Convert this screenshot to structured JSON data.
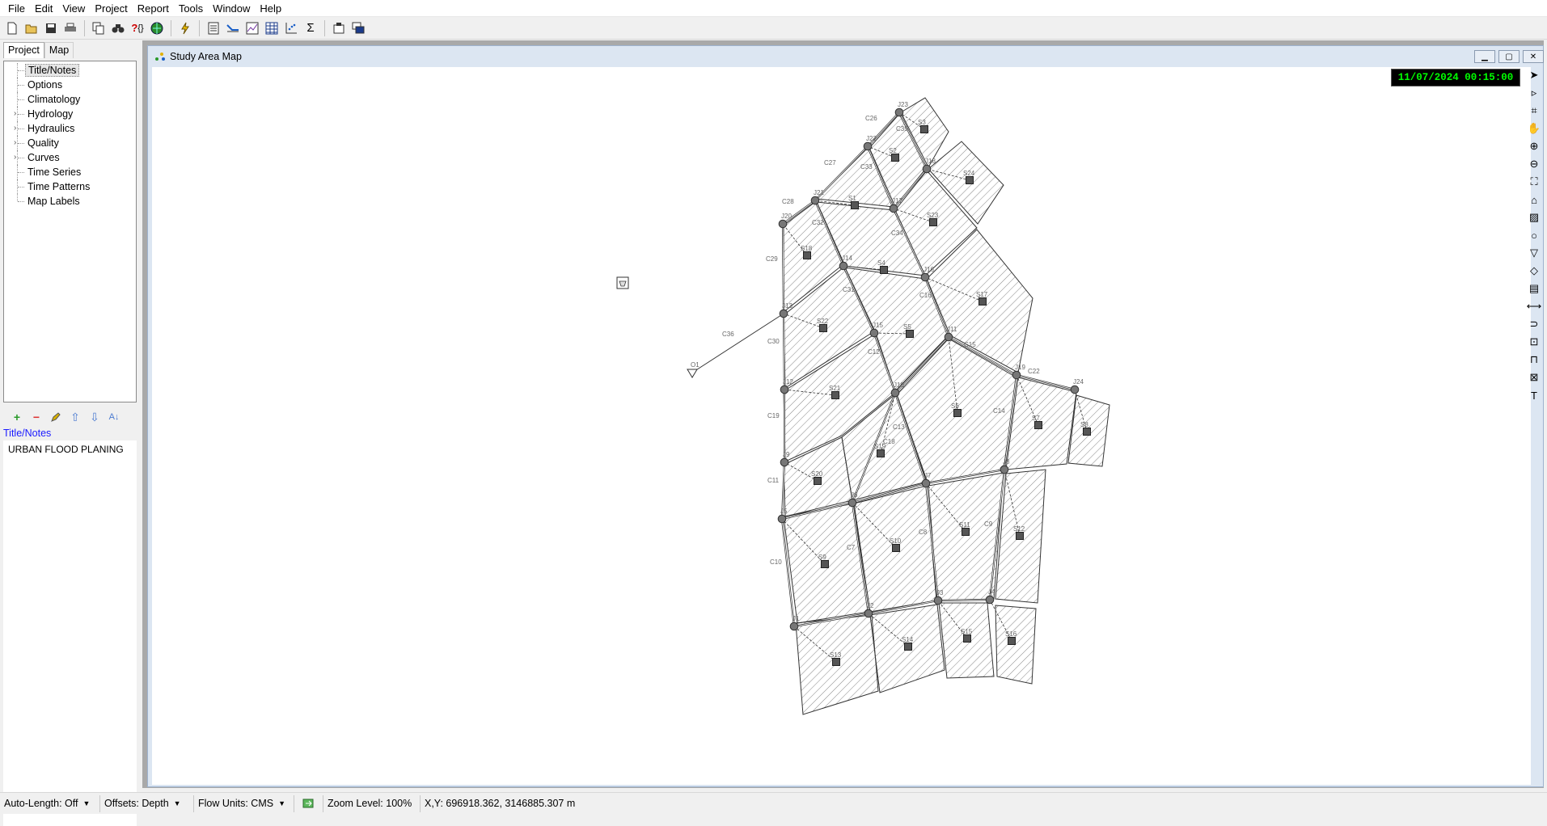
{
  "menu": [
    "File",
    "Edit",
    "View",
    "Project",
    "Report",
    "Tools",
    "Window",
    "Help"
  ],
  "toolbar_icons": [
    "new-file-icon",
    "open-folder-icon",
    "save-icon",
    "print-icon",
    "copy-icon",
    "find-icon",
    "query-icon",
    "globe-icon",
    "run-icon",
    "report-icon",
    "profile-plot-icon",
    "time-series-plot-icon",
    "table-icon",
    "scatter-plot-icon",
    "statistics-icon",
    "options-icon",
    "arrange-windows-icon"
  ],
  "left_panel": {
    "tabs": [
      "Project",
      "Map"
    ],
    "active_tab": "Project",
    "tree": [
      {
        "label": "Title/Notes",
        "expandable": false,
        "selected": true
      },
      {
        "label": "Options",
        "expandable": false
      },
      {
        "label": "Climatology",
        "expandable": false
      },
      {
        "label": "Hydrology",
        "expandable": true
      },
      {
        "label": "Hydraulics",
        "expandable": true
      },
      {
        "label": "Quality",
        "expandable": true
      },
      {
        "label": "Curves",
        "expandable": true
      },
      {
        "label": "Time Series",
        "expandable": false
      },
      {
        "label": "Time Patterns",
        "expandable": false
      },
      {
        "label": "Map Labels",
        "expandable": false
      }
    ],
    "mini_toolbar": [
      "add-icon",
      "delete-icon",
      "edit-icon",
      "move-up-icon",
      "move-down-icon",
      "sort-icon"
    ],
    "property_title": "Title/Notes",
    "property_text": "URBAN FLOOD PLANING"
  },
  "map_window": {
    "title": "Study Area Map",
    "time": "11/07/2024 00:15:00",
    "right_tools": [
      "select-object-icon",
      "select-vertex-icon",
      "select-region-icon",
      "pan-icon",
      "zoom-in-icon",
      "zoom-out-icon",
      "full-extent-icon",
      "rain-gage-icon",
      "subcatchment-icon",
      "junction-icon",
      "outfall-icon",
      "divider-icon",
      "storage-icon",
      "conduit-icon",
      "pump-icon",
      "orifice-icon",
      "weir-icon",
      "outlet-icon",
      "label-icon"
    ],
    "nodes": [
      {
        "id": "J1"
      },
      {
        "id": "J2"
      },
      {
        "id": "J3"
      },
      {
        "id": "J4"
      },
      {
        "id": "J5"
      },
      {
        "id": "J6"
      },
      {
        "id": "J7"
      },
      {
        "id": "J8"
      },
      {
        "id": "J9"
      },
      {
        "id": "J10"
      },
      {
        "id": "J11"
      },
      {
        "id": "J12"
      },
      {
        "id": "J13"
      },
      {
        "id": "J14"
      },
      {
        "id": "J15"
      },
      {
        "id": "J16"
      },
      {
        "id": "J17"
      },
      {
        "id": "J18"
      },
      {
        "id": "J19"
      },
      {
        "id": "J20"
      },
      {
        "id": "J21"
      },
      {
        "id": "J22"
      },
      {
        "id": "J23"
      },
      {
        "id": "J24"
      },
      {
        "id": "O1"
      }
    ],
    "subcatchments": [
      "S1",
      "S2",
      "S3",
      "S4",
      "S5",
      "S6",
      "S7",
      "S8",
      "S9",
      "S10",
      "S11",
      "S12",
      "S13",
      "S14",
      "S15",
      "S16",
      "S17",
      "S18",
      "S20",
      "S21",
      "S22",
      "S23",
      "S24"
    ],
    "conduits": [
      "C7",
      "C8",
      "C9",
      "C10",
      "C11",
      "C12",
      "C13",
      "C14",
      "C15",
      "C16",
      "C18",
      "C19",
      "C22",
      "C26",
      "C27",
      "C28",
      "C29",
      "C30",
      "C31",
      "C32",
      "C33",
      "C34",
      "C35",
      "C36"
    ]
  },
  "status": {
    "auto_length": "Auto-Length: Off",
    "offsets": "Offsets: Depth",
    "flow_units": "Flow Units: CMS",
    "zoom": "Zoom Level: 100%",
    "xy": "X,Y: 696918.362, 3146885.307 m"
  }
}
